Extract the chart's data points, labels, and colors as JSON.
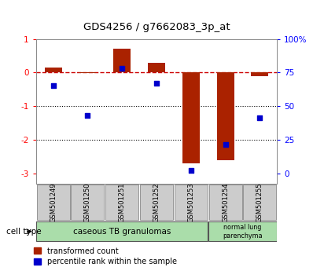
{
  "title": "GDS4256 / g7662083_3p_at",
  "samples": [
    "GSM501249",
    "GSM501250",
    "GSM501251",
    "GSM501252",
    "GSM501253",
    "GSM501254",
    "GSM501255"
  ],
  "red_bars": [
    0.15,
    -0.02,
    0.72,
    0.28,
    -2.7,
    -2.6,
    -0.1
  ],
  "blue_dots": [
    -0.38,
    -1.28,
    0.12,
    -0.32,
    -2.9,
    -2.15,
    -1.35
  ],
  "ylim_left": [
    -3.3,
    1.0
  ],
  "right_ticks": [
    0,
    25,
    50,
    75,
    100
  ],
  "right_tick_labels": [
    "0",
    "25",
    "50",
    "75",
    "100%"
  ],
  "left_ticks": [
    -3,
    -2,
    -1,
    0,
    1
  ],
  "hline_y": 0.0,
  "dotted_lines": [
    -1,
    -2
  ],
  "legend_red_label": "transformed count",
  "legend_blue_label": "percentile rank within the sample",
  "bar_color": "#aa2200",
  "dot_color": "#0000cc",
  "dashed_line_color": "#cc0000",
  "bg_color": "#ffffff",
  "bar_width": 0.5,
  "group1_label": "caseous TB granulomas",
  "group2_label": "normal lung\nparenchyma",
  "cell_type_label": "cell type",
  "group_color": "#aaddaa",
  "sample_box_color": "#cccccc"
}
